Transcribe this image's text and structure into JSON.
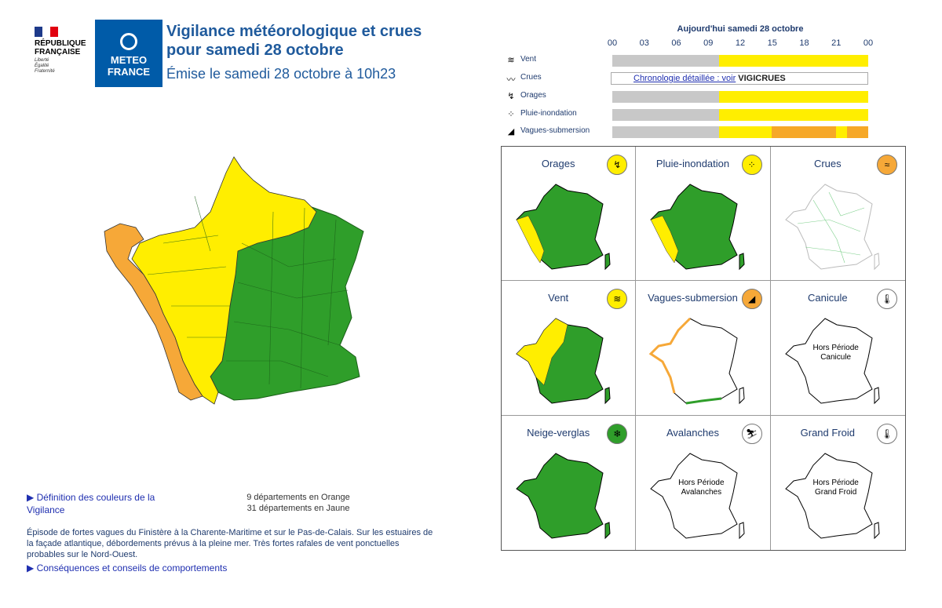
{
  "header": {
    "rf_name": [
      "RÉPUBLIQUE",
      "FRANÇAISE"
    ],
    "rf_motto": [
      "Liberté",
      "Égalité",
      "Fraternité"
    ],
    "mf_logo": [
      "METEO",
      "FRANCE"
    ],
    "title_line1": "Vigilance météorologique et crues",
    "title_line2": "pour samedi 28 octobre",
    "issued": "Émise le samedi 28 octobre à 10h23"
  },
  "timeline": {
    "heading": "Aujourd'hui samedi 28 octobre",
    "ticks": [
      "00",
      "03",
      "06",
      "09",
      "12",
      "15",
      "18",
      "21",
      "00"
    ],
    "rows": [
      {
        "label": "Vent",
        "icon": "wind-icon",
        "segments": [
          {
            "color": "#c8c8c8",
            "frac": 0.416
          },
          {
            "color": "#ffee00",
            "frac": 0.584
          }
        ]
      },
      {
        "label": "Crues",
        "icon": "waves-icon",
        "link_text": "Chronologie détaillée : voir",
        "vigicrues": "VIGICRUES"
      },
      {
        "label": "Orages",
        "icon": "lightning-icon",
        "segments": [
          {
            "color": "#c8c8c8",
            "frac": 0.416
          },
          {
            "color": "#ffee00",
            "frac": 0.584
          }
        ]
      },
      {
        "label": "Pluie-inondation",
        "icon": "rain-flood-icon",
        "segments": [
          {
            "color": "#c8c8c8",
            "frac": 0.416
          },
          {
            "color": "#ffee00",
            "frac": 0.584
          }
        ]
      },
      {
        "label": "Vagues-submersion",
        "icon": "wave-submersion-icon",
        "segments": [
          {
            "color": "#c8c8c8",
            "frac": 0.416
          },
          {
            "color": "#ffee00",
            "frac": 0.208
          },
          {
            "color": "#f6a828",
            "frac": 0.25
          },
          {
            "color": "#ffee00",
            "frac": 0.042
          },
          {
            "color": "#f6a828",
            "frac": 0.084
          }
        ]
      }
    ]
  },
  "colors": {
    "green": "#2f9e2a",
    "yellow": "#ffee00",
    "orange": "#f6a838",
    "grey": "#c8c8c8",
    "link": "#1f2fb0"
  },
  "bottom": {
    "definition_link": "Définition des couleurs de la Vigilance",
    "count_orange": "9 départements en Orange",
    "count_yellow": "31 départements en Jaune",
    "episode": "Épisode de fortes vagues du Finistère à la Charente-Maritime et sur le Pas-de-Calais. Sur les estuaires de la façade atlantique, débordements prévus à la pleine mer. Très fortes rafales de vent ponctuelles probables sur le Nord-Ouest.",
    "consequences_link": "Conséquences et conseils de comportements"
  },
  "phenomena": [
    {
      "title": "Orages",
      "badge_color": "#ffee00",
      "badge_icon": "lightning-icon",
      "map": "mostly-green-west-yellow"
    },
    {
      "title": "Pluie-inondation",
      "badge_color": "#ffee00",
      "badge_icon": "rain-flood-icon",
      "map": "mostly-green-west-yellow"
    },
    {
      "title": "Crues",
      "badge_color": "#f6a838",
      "badge_icon": "waves-icon",
      "map": "rivers"
    },
    {
      "title": "Vent",
      "badge_color": "#ffee00",
      "badge_icon": "wind-icon",
      "map": "green-northwest-yellow"
    },
    {
      "title": "Vagues-submersion",
      "badge_color": "#f6a838",
      "badge_icon": "wave-submersion-icon",
      "map": "coast-outline"
    },
    {
      "title": "Canicule",
      "badge_color": "#ffffff",
      "badge_icon": "thermometer-icon",
      "map": "outline",
      "note": [
        "Hors Période",
        "Canicule"
      ]
    },
    {
      "title": "Neige-verglas",
      "badge_color": "#2f9e2a",
      "badge_icon": "snowflake-icon",
      "map": "all-green"
    },
    {
      "title": "Avalanches",
      "badge_color": "#ffffff",
      "badge_icon": "avalanche-icon",
      "map": "outline",
      "note": [
        "Hors Période",
        "Avalanches"
      ]
    },
    {
      "title": "Grand Froid",
      "badge_color": "#ffffff",
      "badge_icon": "thermometer-icon",
      "map": "outline",
      "note": [
        "Hors Période",
        "Grand Froid"
      ]
    }
  ]
}
